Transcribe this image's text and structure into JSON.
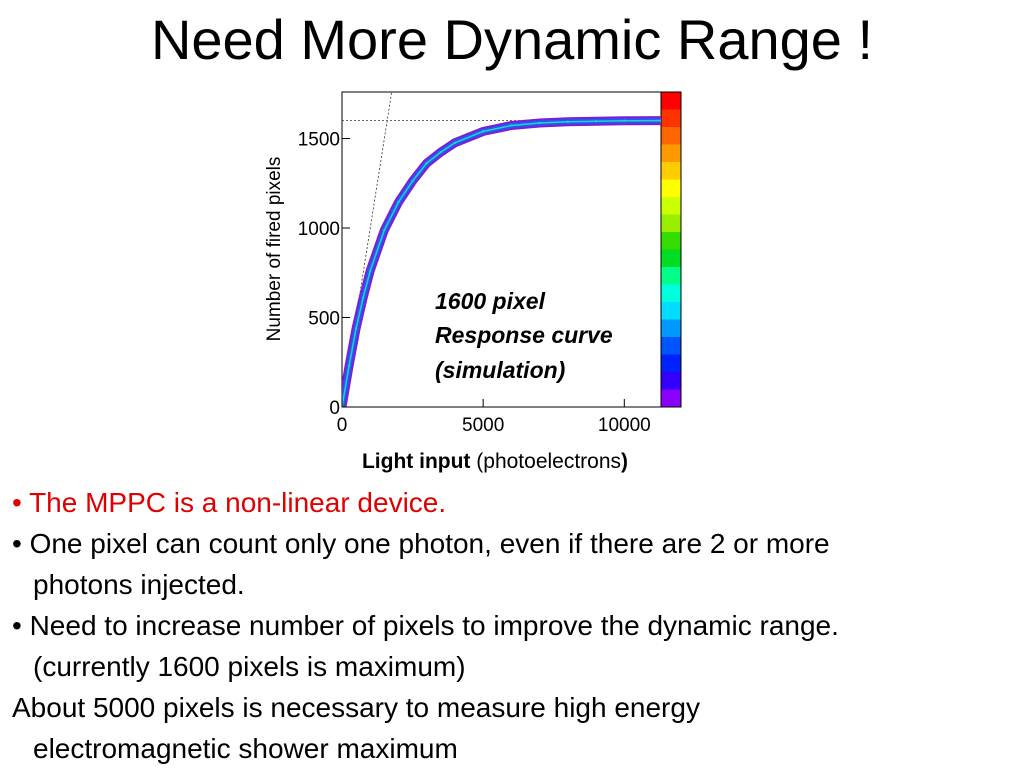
{
  "slide": {
    "title": "Need More Dynamic Range !"
  },
  "chart_data": {
    "type": "scatter",
    "subtype": "2D density histogram (colz)",
    "xlabel_bold": "Light input",
    "xlabel_rest": " (photoelectrons",
    "xlabel_close": ")",
    "ylabel": "Number of fired pixels",
    "xlim": [
      0,
      11300
    ],
    "ylim": [
      0,
      1760
    ],
    "x_ticks": [
      0,
      5000,
      10000
    ],
    "x_tick_labels": [
      "0",
      "5000",
      "10000"
    ],
    "y_ticks": [
      0,
      500,
      1000,
      1500
    ],
    "y_tick_labels": [
      "0",
      "500",
      "1000",
      "1500"
    ],
    "annotation": [
      "1600 pixel",
      "Response curve",
      "(simulation)"
    ],
    "saturation_level": 1600,
    "linear_reference_slope": 1,
    "series": [
      {
        "x": [
          0,
          250,
          500,
          750,
          1000,
          1500,
          2000,
          2500,
          3000,
          3500,
          4000,
          5000,
          6000,
          7000,
          8000,
          9000,
          10000,
          11300
        ],
        "y": [
          0,
          230,
          440,
          611,
          761,
          988,
          1145,
          1263,
          1362,
          1424,
          1476,
          1540,
          1573,
          1587,
          1594,
          1597,
          1599,
          1600
        ]
      }
    ],
    "grid": false,
    "colorbar_colors": [
      "#ff0000",
      "#ff3300",
      "#ff6600",
      "#ff9900",
      "#ffcc00",
      "#ffff00",
      "#ccff00",
      "#99ee00",
      "#33dd00",
      "#00dd22",
      "#00ff88",
      "#00ffdd",
      "#00ddff",
      "#0099ff",
      "#0055ff",
      "#0022ff",
      "#3300ff",
      "#8800ff"
    ],
    "curve_colors": {
      "outer": "#7a1fd8",
      "mid": "#2b55f0",
      "core": "#17d8c8",
      "reference": "#333333"
    }
  },
  "bullets": {
    "b1": "• The MPPC is a non-linear device.",
    "b2a": "• One pixel can count only one photon, even if there are 2 or more",
    "b2b": "photons injected.",
    "b3a": "• Need to increase number of pixels to improve the dynamic range.",
    "b3b": "(currently 1600 pixels is maximum)",
    "b4a": "About 5000 pixels is necessary to measure high energy",
    "b4b": "electromagnetic shower maximum"
  }
}
